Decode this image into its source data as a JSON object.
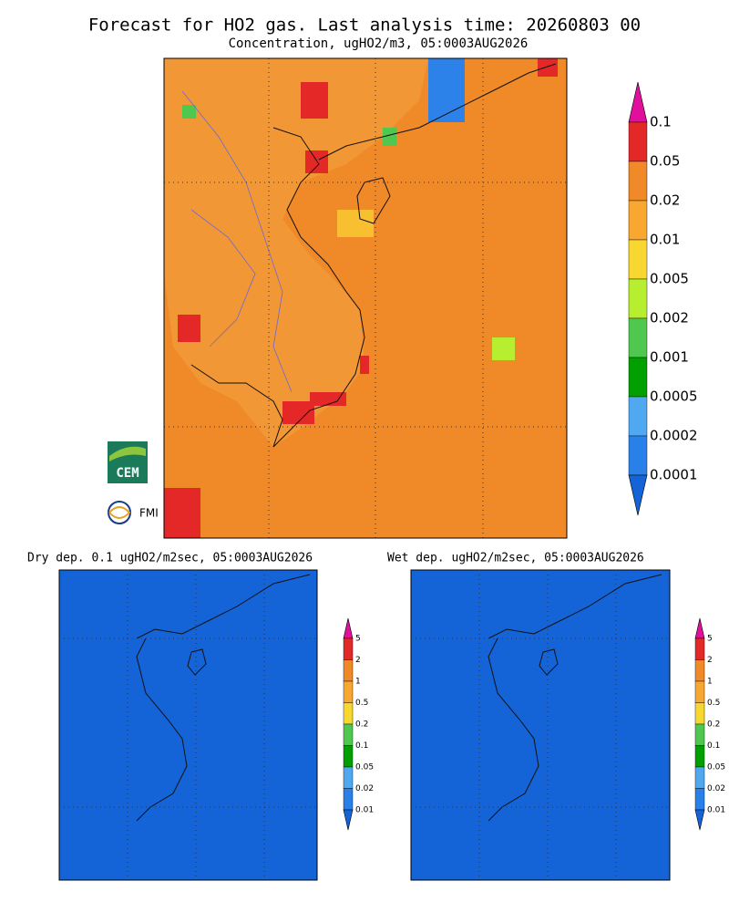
{
  "title": "Forecast for HO2 gas. Last analysis time: 20260803 00",
  "main_panel": {
    "subtitle": "Concentration, ugHO2/m3, 05:0003AUG2026",
    "colorbar": {
      "labels": [
        "0.1",
        "0.05",
        "0.02",
        "0.01",
        "0.005",
        "0.002",
        "0.001",
        "0.0005",
        "0.0002",
        "0.0001"
      ],
      "colors": [
        "#e0109c",
        "#e42828",
        "#f08a28",
        "#f8a830",
        "#f8d830",
        "#b8ee30",
        "#50c850",
        "#00a000",
        "#50a8f0",
        "#2880e8",
        "#1464d8"
      ]
    }
  },
  "panels": [
    {
      "subtitle": "Dry dep. 0.1 ugHO2/m2sec, 05:0003AUG2026",
      "colorbar": {
        "labels": [
          "5",
          "2",
          "1",
          "0.5",
          "0.2",
          "0.1",
          "0.05",
          "0.02",
          "0.01"
        ],
        "colors": [
          "#e0109c",
          "#e42828",
          "#f08a28",
          "#f8a830",
          "#f8d830",
          "#50c850",
          "#00a000",
          "#50a8f0",
          "#2880e8",
          "#1464d8"
        ]
      }
    },
    {
      "subtitle": "Wet dep. ugHO2/m2sec, 05:0003AUG2026",
      "colorbar": {
        "labels": [
          "5",
          "2",
          "1",
          "0.5",
          "0.2",
          "0.1",
          "0.05",
          "0.02",
          "0.01"
        ],
        "colors": [
          "#e0109c",
          "#e42828",
          "#f08a28",
          "#f8a830",
          "#f8d830",
          "#50c850",
          "#00a000",
          "#50a8f0",
          "#2880e8",
          "#1464d8"
        ]
      }
    }
  ],
  "logos": [
    "CEM",
    "FMI"
  ]
}
